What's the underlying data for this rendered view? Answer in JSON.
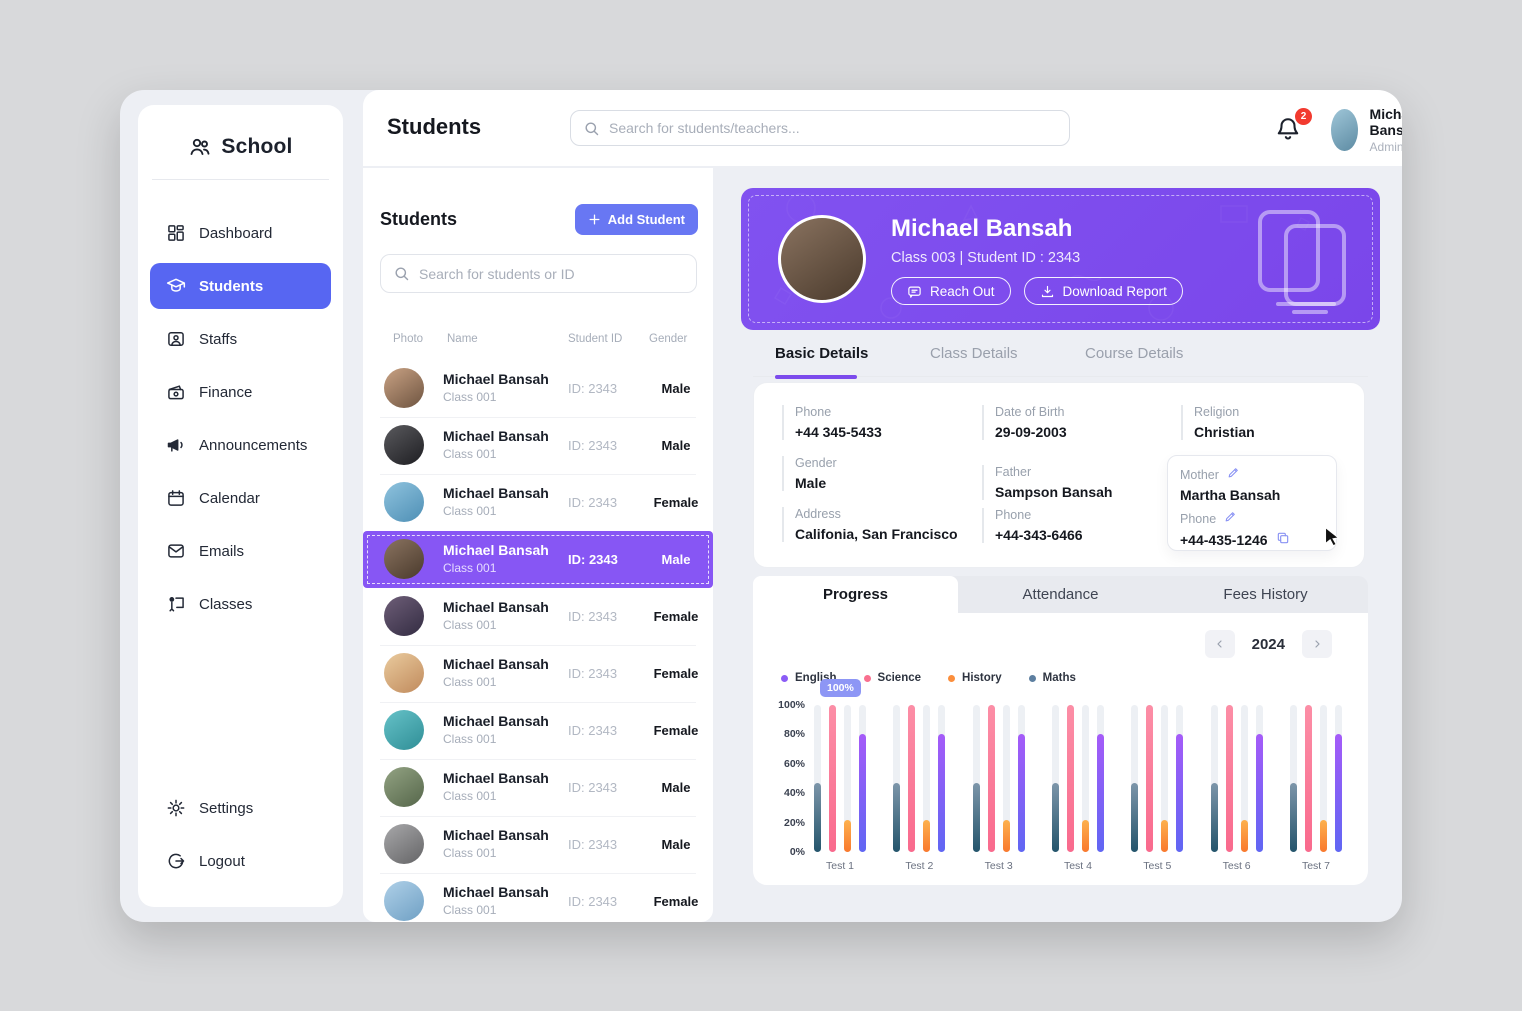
{
  "app": {
    "title": "School"
  },
  "colors": {
    "accent_indigo": "#5766f2",
    "accent_violet": "#7c4bec",
    "selected_row": "#8756f4",
    "badge_red": "#f23a2f",
    "tooltip_bg": "#8d96f5"
  },
  "sidebar": {
    "logo": "School",
    "items": [
      {
        "label": "Dashboard",
        "icon": "dashboard",
        "active": false
      },
      {
        "label": "Students",
        "icon": "students",
        "active": true
      },
      {
        "label": "Staffs",
        "icon": "staffs",
        "active": false
      },
      {
        "label": "Finance",
        "icon": "finance",
        "active": false
      },
      {
        "label": "Announcements",
        "icon": "announcements",
        "active": false
      },
      {
        "label": "Calendar",
        "icon": "calendar",
        "active": false
      },
      {
        "label": "Emails",
        "icon": "emails",
        "active": false
      },
      {
        "label": "Classes",
        "icon": "classes",
        "active": false
      }
    ],
    "footer_items": [
      {
        "label": "Settings",
        "icon": "settings"
      },
      {
        "label": "Logout",
        "icon": "logout"
      }
    ]
  },
  "topbar": {
    "title": "Students",
    "search_placeholder": "Search for students/teachers...",
    "notification_count": "2",
    "user": {
      "name": "Michael Bansah",
      "role": "Admin"
    }
  },
  "students_panel": {
    "title": "Students",
    "add_button": "Add Student",
    "search_placeholder": "Search for students or ID",
    "columns": [
      "Photo",
      "Name",
      "Student ID",
      "Gender"
    ],
    "rows": [
      {
        "name": "Michael Bansah",
        "class": "Class 001",
        "id": "ID: 2343",
        "gender": "Male",
        "selected": false,
        "photo_tint": [
          "#c9a284",
          "#6e5440"
        ]
      },
      {
        "name": "Michael Bansah",
        "class": "Class 001",
        "id": "ID: 2343",
        "gender": "Male",
        "selected": false,
        "photo_tint": [
          "#5a5a5e",
          "#1e1e22"
        ]
      },
      {
        "name": "Michael Bansah",
        "class": "Class 001",
        "id": "ID: 2343",
        "gender": "Female",
        "selected": false,
        "photo_tint": [
          "#8fc3de",
          "#4e8fb5"
        ]
      },
      {
        "name": "Michael Bansah",
        "class": "Class 001",
        "id": "ID: 2343",
        "gender": "Male",
        "selected": true,
        "photo_tint": [
          "#8a7360",
          "#4a3a2c"
        ]
      },
      {
        "name": "Michael Bansah",
        "class": "Class 001",
        "id": "ID: 2343",
        "gender": "Female",
        "selected": false,
        "photo_tint": [
          "#6e5e78",
          "#332c42"
        ]
      },
      {
        "name": "Michael Bansah",
        "class": "Class 001",
        "id": "ID: 2343",
        "gender": "Female",
        "selected": false,
        "photo_tint": [
          "#eacb9e",
          "#c08a5c"
        ]
      },
      {
        "name": "Michael Bansah",
        "class": "Class 001",
        "id": "ID: 2343",
        "gender": "Female",
        "selected": false,
        "photo_tint": [
          "#66c2c8",
          "#2f8e96"
        ]
      },
      {
        "name": "Michael Bansah",
        "class": "Class 001",
        "id": "ID: 2343",
        "gender": "Male",
        "selected": false,
        "photo_tint": [
          "#93a383",
          "#55664a"
        ]
      },
      {
        "name": "Michael Bansah",
        "class": "Class 001",
        "id": "ID: 2343",
        "gender": "Male",
        "selected": false,
        "photo_tint": [
          "#a8a8aa",
          "#646466"
        ]
      },
      {
        "name": "Michael Bansah",
        "class": "Class 001",
        "id": "ID: 2343",
        "gender": "Female",
        "selected": false,
        "photo_tint": [
          "#afd0e8",
          "#6fa0c4"
        ]
      }
    ]
  },
  "profile": {
    "name": "Michael Bansah",
    "class_line": "Class 003 | Student ID : 2343",
    "reach_out": "Reach Out",
    "download_report": "Download Report",
    "tabs": [
      "Basic Details",
      "Class Details",
      "Course Details"
    ],
    "active_tab": "Basic Details",
    "details": {
      "phone_label": "Phone",
      "phone": "+44 345-5433",
      "dob_label": "Date of Birth",
      "dob": "29-09-2003",
      "religion_label": "Religion",
      "religion": "Christian",
      "gender_label": "Gender",
      "gender": "Male",
      "father_label": "Father",
      "father": "Sampson Bansah",
      "father_phone_label": "Phone",
      "father_phone": "+44-343-6466",
      "address_label": "Address",
      "address": "Califonia, San Francisco",
      "mother_label": "Mother",
      "mother": "Martha Bansah",
      "mother_phone_label": "Phone",
      "mother_phone": "+44-435-1246"
    },
    "sub_tabs": [
      "Progress",
      "Attendance",
      "Fees History"
    ],
    "active_sub_tab": "Progress",
    "year": "2024"
  },
  "chart_data": {
    "type": "bar",
    "title": "",
    "categories": [
      "Test 1",
      "Test 2",
      "Test 3",
      "Test 4",
      "Test 5",
      "Test 6",
      "Test 7"
    ],
    "series": [
      {
        "name": "English",
        "color": "#8b5cf6",
        "values": [
          80,
          80,
          80,
          80,
          80,
          80,
          80
        ]
      },
      {
        "name": "Science",
        "color": "#f9708f",
        "values": [
          100,
          100,
          100,
          100,
          100,
          100,
          100
        ]
      },
      {
        "name": "History",
        "color": "#fb8e3c",
        "values": [
          22,
          22,
          22,
          22,
          22,
          22,
          22
        ]
      },
      {
        "name": "Maths",
        "color": "#5d7fa0",
        "values": [
          47,
          47,
          47,
          47,
          47,
          47,
          47
        ]
      }
    ],
    "bar_order": [
      "Maths",
      "Science",
      "History",
      "English"
    ],
    "ylabels": [
      "0%",
      "20%",
      "40%",
      "60%",
      "80%",
      "100%"
    ],
    "ylim": [
      0,
      100
    ],
    "grid": false,
    "legend_position": "top-left",
    "tooltip": {
      "text": "100%",
      "category": "Test 1",
      "series": "Science"
    }
  }
}
